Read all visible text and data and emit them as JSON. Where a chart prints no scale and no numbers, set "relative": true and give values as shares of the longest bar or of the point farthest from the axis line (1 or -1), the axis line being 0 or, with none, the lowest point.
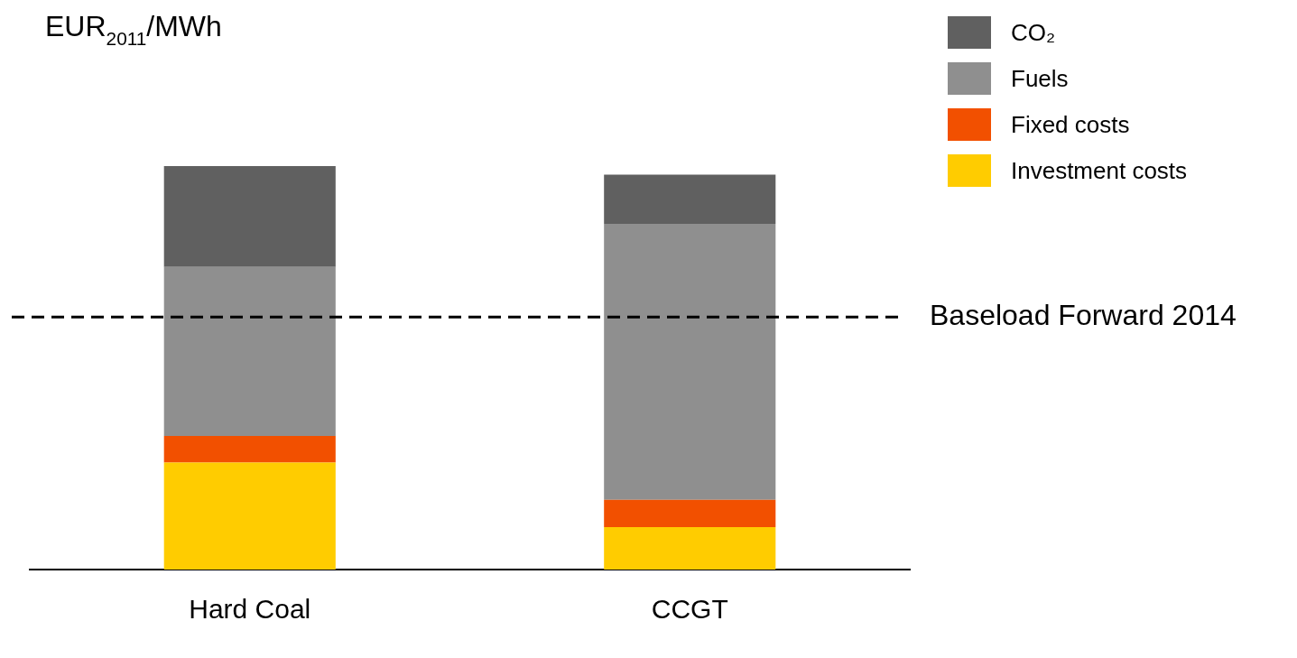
{
  "chart_data": {
    "type": "bar",
    "stacked": true,
    "relative": true,
    "ylabel": "EUR$_{2011}$/MWh",
    "categories": [
      "Hard Coal",
      "CCGT"
    ],
    "series": [
      {
        "name": "Investment costs",
        "color": "#ffcc00",
        "values": [
          0.265,
          0.105
        ]
      },
      {
        "name": "Fixed costs",
        "color": "#f25000",
        "values": [
          0.066,
          0.068
        ]
      },
      {
        "name": "Fuels",
        "color": "#8f8f8f",
        "values": [
          0.419,
          0.684
        ]
      },
      {
        "name": "CO₂",
        "color": "#606060",
        "values": [
          0.25,
          0.122
        ]
      }
    ],
    "ref_lines": [
      {
        "axis": "y",
        "value": 0.626,
        "label": "Baseload Forward 2014",
        "color": "#000000",
        "line_style": "dashed"
      }
    ],
    "legend": "top right",
    "grid": false
  }
}
